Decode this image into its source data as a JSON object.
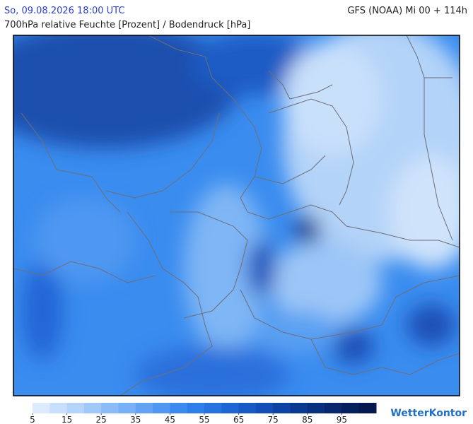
{
  "header": {
    "datetime": "So, 09.08.2026 18:00 UTC",
    "model": "GFS (NOAA) Mi 00 + 114h",
    "title": "700hPa relative Feuchte [Prozent] / Bodendruck [hPa]"
  },
  "legend": {
    "range": [
      5,
      105
    ],
    "ticks": [
      5,
      15,
      25,
      35,
      45,
      55,
      65,
      75,
      85,
      95
    ],
    "colors": [
      "#dcebfd",
      "#c8e0fc",
      "#b4d4fb",
      "#a0c8f9",
      "#8cbcf8",
      "#78b0f6",
      "#64a3f4",
      "#5097f2",
      "#3c8af0",
      "#2e7eea",
      "#2572e0",
      "#1d66d4",
      "#175ac6",
      "#124eb6",
      "#0e43a4",
      "#0b3992",
      "#09307f",
      "#07286e",
      "#061f5e",
      "#05184f"
    ]
  },
  "logo": "WetterKontor"
}
